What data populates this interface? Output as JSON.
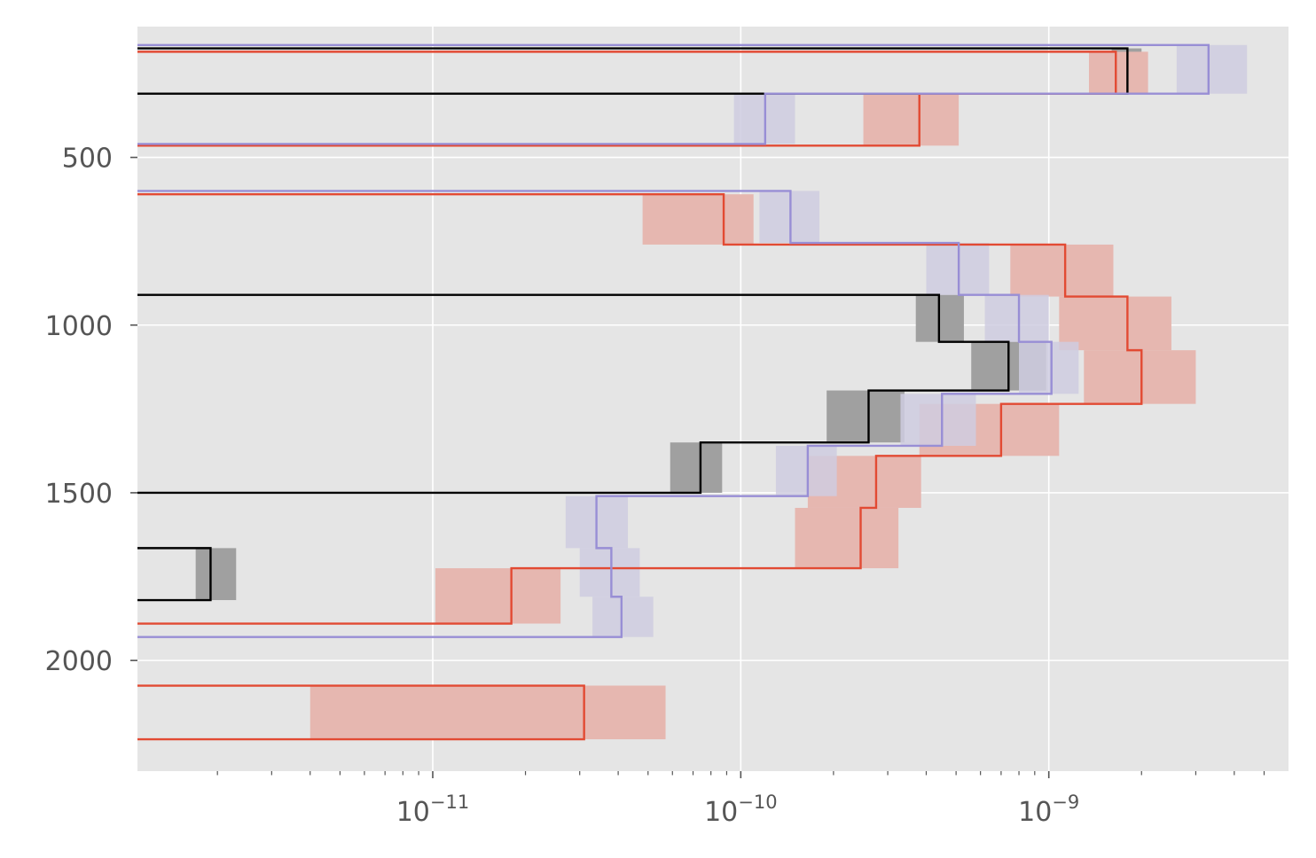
{
  "chart_data": {
    "type": "step",
    "title": "",
    "xlabel": "",
    "ylabel": "",
    "xscale": "log",
    "xlim": [
      1.1e-12,
      6e-09
    ],
    "ylim": [
      2330,
      110
    ],
    "y_inverted": true,
    "grid": true,
    "legend": "none",
    "colors": {
      "background": "#e5e5e5",
      "black": "#000000",
      "red": "#e24a33",
      "purple": "#988ed5",
      "gray_band": "#a0a0a0",
      "red_band": "#e6b7b0",
      "purple_band": "#cfcce1"
    },
    "x_ticks": [
      {
        "value": 1e-11,
        "base": "10",
        "exp": "−11"
      },
      {
        "value": 1e-10,
        "base": "10",
        "exp": "−10"
      },
      {
        "value": 1e-09,
        "base": "10",
        "exp": "−9"
      }
    ],
    "y_ticks": [
      {
        "value": 500,
        "label": "500"
      },
      {
        "value": 1000,
        "label": "1000"
      },
      {
        "value": 1500,
        "label": "1500"
      },
      {
        "value": 2000,
        "label": "2000"
      }
    ],
    "series": [
      {
        "name": "black",
        "color": "#000000",
        "band_color": "#a0a0a0",
        "band_opacity": 1.0,
        "bins": [
          {
            "y0": 175,
            "y1": 310,
            "x": 1.8e-09,
            "lo": 1.6e-09,
            "hi": 2e-09
          },
          {
            "y0": 910,
            "y1": 1050,
            "x": 4.4e-10,
            "lo": 3.7e-10,
            "hi": 5.3e-10
          },
          {
            "y0": 1050,
            "y1": 1195,
            "x": 7.4e-10,
            "lo": 5.6e-10,
            "hi": 9.8e-10
          },
          {
            "y0": 1195,
            "y1": 1350,
            "x": 2.6e-10,
            "lo": 1.9e-10,
            "hi": 3.4e-10
          },
          {
            "y0": 1350,
            "y1": 1500,
            "x": 7.4e-11,
            "lo": 5.9e-11,
            "hi": 8.7e-11
          },
          {
            "y0": 1665,
            "y1": 1820,
            "x": 1.9e-12,
            "lo": 1.7e-12,
            "hi": 2.3e-12
          }
        ]
      },
      {
        "name": "red",
        "color": "#e24a33",
        "band_color": "#e6b7b0",
        "band_opacity": 1.0,
        "bins": [
          {
            "y0": 185,
            "y1": 310,
            "x": 1.65e-09,
            "lo": 1.35e-09,
            "hi": 2.1e-09
          },
          {
            "y0": 310,
            "y1": 465,
            "x": 3.8e-10,
            "lo": 2.5e-10,
            "hi": 5.1e-10
          },
          {
            "y0": 610,
            "y1": 760,
            "x": 8.8e-11,
            "lo": 4.8e-11,
            "hi": 1.1e-10
          },
          {
            "y0": 760,
            "y1": 915,
            "x": 1.13e-09,
            "lo": 7.5e-10,
            "hi": 1.62e-09
          },
          {
            "y0": 915,
            "y1": 1075,
            "x": 1.8e-09,
            "lo": 1.08e-09,
            "hi": 2.5e-09
          },
          {
            "y0": 1075,
            "y1": 1235,
            "x": 2e-09,
            "lo": 1.3e-09,
            "hi": 3e-09
          },
          {
            "y0": 1235,
            "y1": 1390,
            "x": 7e-10,
            "lo": 3.8e-10,
            "hi": 1.08e-09
          },
          {
            "y0": 1390,
            "y1": 1545,
            "x": 2.75e-10,
            "lo": 1.65e-10,
            "hi": 3.85e-10
          },
          {
            "y0": 1545,
            "y1": 1725,
            "x": 2.45e-10,
            "lo": 1.5e-10,
            "hi": 3.25e-10
          },
          {
            "y0": 1725,
            "y1": 1890,
            "x": 1.8e-11,
            "lo": 1.02e-11,
            "hi": 2.6e-11
          },
          {
            "y0": 2075,
            "y1": 2235,
            "x": 3.1e-11,
            "lo": 4e-12,
            "hi": 5.7e-11
          }
        ]
      },
      {
        "name": "purple",
        "color": "#988ed5",
        "band_color": "#cfcce1",
        "band_opacity": 0.85,
        "bins": [
          {
            "y0": 165,
            "y1": 310,
            "x": 3.3e-09,
            "lo": 2.6e-09,
            "hi": 4.4e-09
          },
          {
            "y0": 310,
            "y1": 460,
            "x": 1.2e-10,
            "lo": 9.5e-11,
            "hi": 1.5e-10
          },
          {
            "y0": 600,
            "y1": 755,
            "x": 1.45e-10,
            "lo": 1.15e-10,
            "hi": 1.8e-10
          },
          {
            "y0": 755,
            "y1": 910,
            "x": 5.1e-10,
            "lo": 4e-10,
            "hi": 6.4e-10
          },
          {
            "y0": 910,
            "y1": 1050,
            "x": 8e-10,
            "lo": 6.2e-10,
            "hi": 1e-09
          },
          {
            "y0": 1050,
            "y1": 1205,
            "x": 1.02e-09,
            "lo": 8e-10,
            "hi": 1.25e-09
          },
          {
            "y0": 1205,
            "y1": 1360,
            "x": 4.5e-10,
            "lo": 3.3e-10,
            "hi": 5.8e-10
          },
          {
            "y0": 1360,
            "y1": 1510,
            "x": 1.65e-10,
            "lo": 1.3e-10,
            "hi": 2.05e-10
          },
          {
            "y0": 1510,
            "y1": 1665,
            "x": 3.4e-11,
            "lo": 2.7e-11,
            "hi": 4.3e-11
          },
          {
            "y0": 1665,
            "y1": 1810,
            "x": 3.8e-11,
            "lo": 3e-11,
            "hi": 4.7e-11
          },
          {
            "y0": 1810,
            "y1": 1930,
            "x": 4.1e-11,
            "lo": 3.3e-11,
            "hi": 5.2e-11
          }
        ]
      }
    ]
  }
}
